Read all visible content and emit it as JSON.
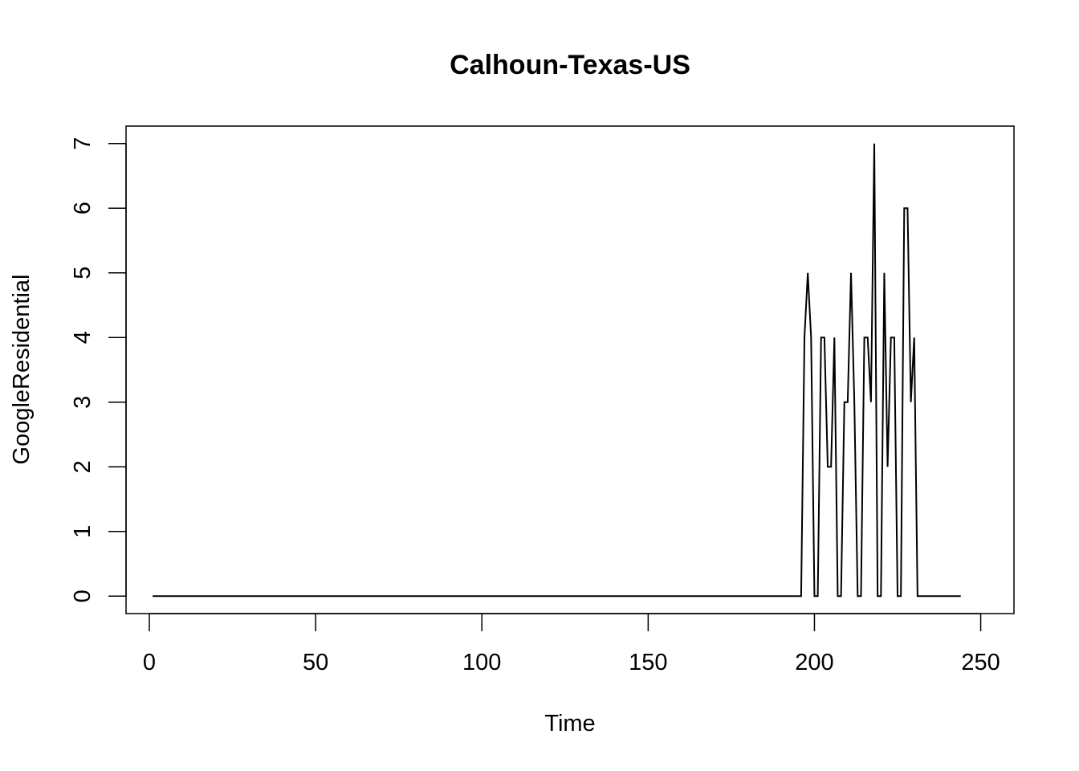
{
  "chart_data": {
    "type": "line",
    "title": "Calhoun-Texas-US",
    "xlabel": "Time",
    "ylabel": "GoogleResidential",
    "xlim": [
      -7,
      260
    ],
    "ylim": [
      -0.27,
      7.27
    ],
    "x_ticks": [
      0,
      50,
      100,
      150,
      200,
      250
    ],
    "y_ticks": [
      0,
      1,
      2,
      3,
      4,
      5,
      6,
      7
    ],
    "grid": false,
    "legend": "none",
    "line_color": "#000000",
    "series": [
      {
        "x_start": 1,
        "values": [
          0,
          0,
          0,
          0,
          0,
          0,
          0,
          0,
          0,
          0,
          0,
          0,
          0,
          0,
          0,
          0,
          0,
          0,
          0,
          0,
          0,
          0,
          0,
          0,
          0,
          0,
          0,
          0,
          0,
          0,
          0,
          0,
          0,
          0,
          0,
          0,
          0,
          0,
          0,
          0,
          0,
          0,
          0,
          0,
          0,
          0,
          0,
          0,
          0,
          0,
          0,
          0,
          0,
          0,
          0,
          0,
          0,
          0,
          0,
          0,
          0,
          0,
          0,
          0,
          0,
          0,
          0,
          0,
          0,
          0,
          0,
          0,
          0,
          0,
          0,
          0,
          0,
          0,
          0,
          0,
          0,
          0,
          0,
          0,
          0,
          0,
          0,
          0,
          0,
          0,
          0,
          0,
          0,
          0,
          0,
          0,
          0,
          0,
          0,
          0,
          0,
          0,
          0,
          0,
          0,
          0,
          0,
          0,
          0,
          0,
          0,
          0,
          0,
          0,
          0,
          0,
          0,
          0,
          0,
          0,
          0,
          0,
          0,
          0,
          0,
          0,
          0,
          0,
          0,
          0,
          0,
          0,
          0,
          0,
          0,
          0,
          0,
          0,
          0,
          0,
          0,
          0,
          0,
          0,
          0,
          0,
          0,
          0,
          0,
          0,
          0,
          0,
          0,
          0,
          0,
          0,
          0,
          0,
          0,
          0,
          0,
          0,
          0,
          0,
          0,
          0,
          0,
          0,
          0,
          0,
          0,
          0,
          0,
          0,
          0,
          0,
          0,
          0,
          0,
          0,
          0,
          0,
          0,
          0,
          0,
          0,
          0,
          0,
          0,
          0,
          0,
          0,
          0,
          0,
          0,
          0,
          4,
          5,
          4,
          0,
          0,
          4,
          4,
          2,
          2,
          4,
          0,
          0,
          3,
          3,
          5,
          3,
          0,
          0,
          4,
          4,
          3,
          7,
          0,
          0,
          5,
          2,
          4,
          4,
          0,
          0,
          6,
          6,
          3,
          4,
          0,
          0,
          0,
          0,
          0,
          0,
          0,
          0,
          0,
          0,
          0,
          0,
          0,
          0
        ]
      }
    ]
  }
}
